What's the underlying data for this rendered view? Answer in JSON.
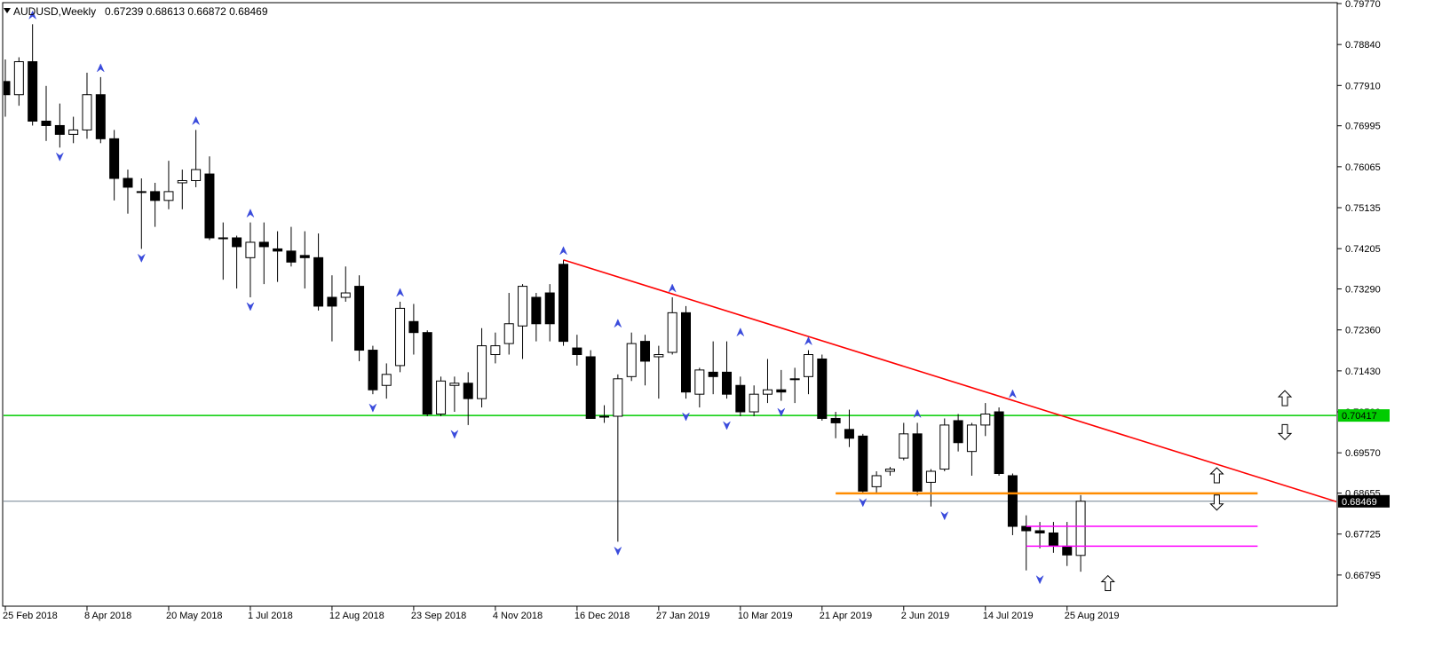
{
  "header": {
    "symbol_timeframe": "AUDUSD,Weekly",
    "ohlc": "0.67239 0.68613 0.66872 0.68469"
  },
  "colors": {
    "background": "#ffffff",
    "candle": "#000000",
    "trendline": "#ff0000",
    "resistance": "#00cc00",
    "support_orange": "#ff8c00",
    "support_magenta": "#ff00ff",
    "current_price_line": "#708090",
    "fractal": "#3a4bdc"
  },
  "chart_data": {
    "type": "candlestick",
    "title": "AUDUSD,Weekly",
    "ylim": [
      0.6645,
      0.7977
    ],
    "y_ticks": [
      "0.79770",
      "0.78840",
      "0.77910",
      "0.76995",
      "0.76065",
      "0.75135",
      "0.74205",
      "0.73290",
      "0.72360",
      "0.71430",
      "0.70500",
      "0.69570",
      "0.68655",
      "0.67725",
      "0.66795"
    ],
    "x_ticks": [
      {
        "label": "25 Feb 2018",
        "index": 0
      },
      {
        "label": "8 Apr 2018",
        "index": 6
      },
      {
        "label": "20 May 2018",
        "index": 12
      },
      {
        "label": "1 Jul 2018",
        "index": 18
      },
      {
        "label": "12 Aug 2018",
        "index": 24
      },
      {
        "label": "23 Sep 2018",
        "index": 30
      },
      {
        "label": "4 Nov 2018",
        "index": 36
      },
      {
        "label": "16 Dec 2018",
        "index": 42
      },
      {
        "label": "27 Jan 2019",
        "index": 48
      },
      {
        "label": "10 Mar 2019",
        "index": 54
      },
      {
        "label": "21 Apr 2019",
        "index": 60
      },
      {
        "label": "2 Jun 2019",
        "index": 66
      },
      {
        "label": "14 Jul 2019",
        "index": 72
      },
      {
        "label": "25 Aug 2019",
        "index": 78
      }
    ],
    "candles": [
      [
        0.78,
        0.785,
        0.772,
        0.777
      ],
      [
        0.777,
        0.7855,
        0.7745,
        0.7845
      ],
      [
        0.7845,
        0.793,
        0.77,
        0.771
      ],
      [
        0.771,
        0.779,
        0.7665,
        0.77
      ],
      [
        0.77,
        0.775,
        0.765,
        0.768
      ],
      [
        0.768,
        0.772,
        0.766,
        0.769
      ],
      [
        0.769,
        0.782,
        0.767,
        0.777
      ],
      [
        0.777,
        0.781,
        0.766,
        0.767
      ],
      [
        0.767,
        0.769,
        0.753,
        0.758
      ],
      [
        0.758,
        0.76,
        0.75,
        0.756
      ],
      [
        0.755,
        0.758,
        0.742,
        0.755
      ],
      [
        0.755,
        0.757,
        0.747,
        0.753
      ],
      [
        0.753,
        0.762,
        0.751,
        0.755
      ],
      [
        0.757,
        0.76,
        0.751,
        0.7575
      ],
      [
        0.7575,
        0.769,
        0.756,
        0.76
      ],
      [
        0.759,
        0.763,
        0.744,
        0.7445
      ],
      [
        0.7445,
        0.748,
        0.735,
        0.7445
      ],
      [
        0.7445,
        0.745,
        0.733,
        0.7425
      ],
      [
        0.74,
        0.748,
        0.731,
        0.7435
      ],
      [
        0.7435,
        0.748,
        0.734,
        0.7425
      ],
      [
        0.742,
        0.746,
        0.7345,
        0.7415
      ],
      [
        0.7415,
        0.747,
        0.738,
        0.739
      ],
      [
        0.7405,
        0.746,
        0.733,
        0.74
      ],
      [
        0.74,
        0.7455,
        0.728,
        0.729
      ],
      [
        0.731,
        0.736,
        0.721,
        0.729
      ],
      [
        0.731,
        0.738,
        0.73,
        0.732
      ],
      [
        0.7335,
        0.736,
        0.7165,
        0.719
      ],
      [
        0.719,
        0.72,
        0.709,
        0.71
      ],
      [
        0.711,
        0.716,
        0.708,
        0.7135
      ],
      [
        0.7155,
        0.73,
        0.714,
        0.7285
      ],
      [
        0.7255,
        0.7295,
        0.718,
        0.723
      ],
      [
        0.723,
        0.7235,
        0.704,
        0.7045
      ],
      [
        0.7045,
        0.713,
        0.704,
        0.712
      ],
      [
        0.711,
        0.713,
        0.705,
        0.7115
      ],
      [
        0.7115,
        0.714,
        0.702,
        0.708
      ],
      [
        0.708,
        0.724,
        0.706,
        0.72
      ],
      [
        0.718,
        0.723,
        0.716,
        0.72
      ],
      [
        0.7205,
        0.732,
        0.718,
        0.725
      ],
      [
        0.7245,
        0.734,
        0.717,
        0.7335
      ],
      [
        0.731,
        0.732,
        0.721,
        0.725
      ],
      [
        0.732,
        0.734,
        0.721,
        0.725
      ],
      [
        0.7385,
        0.7395,
        0.72,
        0.721
      ],
      [
        0.7195,
        0.7225,
        0.7155,
        0.718
      ],
      [
        0.7175,
        0.719,
        0.7035,
        0.7035
      ],
      [
        0.704,
        0.7065,
        0.7025,
        0.704
      ],
      [
        0.704,
        0.7135,
        0.6755,
        0.7125
      ],
      [
        0.713,
        0.723,
        0.712,
        0.7205
      ],
      [
        0.721,
        0.7225,
        0.711,
        0.7165
      ],
      [
        0.7175,
        0.72,
        0.708,
        0.718
      ],
      [
        0.7185,
        0.731,
        0.718,
        0.7275
      ],
      [
        0.7275,
        0.729,
        0.708,
        0.7095
      ],
      [
        0.709,
        0.715,
        0.706,
        0.7145
      ],
      [
        0.714,
        0.721,
        0.709,
        0.713
      ],
      [
        0.714,
        0.721,
        0.708,
        0.709
      ],
      [
        0.711,
        0.713,
        0.704,
        0.705
      ],
      [
        0.705,
        0.711,
        0.704,
        0.709
      ],
      [
        0.709,
        0.717,
        0.707,
        0.71
      ],
      [
        0.71,
        0.7145,
        0.7075,
        0.7095
      ],
      [
        0.7125,
        0.715,
        0.707,
        0.7125
      ],
      [
        0.713,
        0.719,
        0.709,
        0.718
      ],
      [
        0.717,
        0.718,
        0.703,
        0.7035
      ],
      [
        0.7035,
        0.705,
        0.699,
        0.7025
      ],
      [
        0.701,
        0.7055,
        0.697,
        0.699
      ],
      [
        0.6995,
        0.7,
        0.6865,
        0.687
      ],
      [
        0.688,
        0.6915,
        0.6865,
        0.6905
      ],
      [
        0.6915,
        0.6925,
        0.6905,
        0.692
      ],
      [
        0.6945,
        0.7025,
        0.694,
        0.7
      ],
      [
        0.7,
        0.7025,
        0.686,
        0.687
      ],
      [
        0.689,
        0.692,
        0.6835,
        0.6915
      ],
      [
        0.692,
        0.7035,
        0.6915,
        0.702
      ],
      [
        0.703,
        0.7045,
        0.696,
        0.698
      ],
      [
        0.696,
        0.7025,
        0.6905,
        0.702
      ],
      [
        0.702,
        0.707,
        0.6995,
        0.7045
      ],
      [
        0.705,
        0.706,
        0.6905,
        0.691
      ],
      [
        0.6905,
        0.691,
        0.677,
        0.679
      ],
      [
        0.679,
        0.6815,
        0.669,
        0.678
      ],
      [
        0.678,
        0.68,
        0.674,
        0.6775
      ],
      [
        0.6775,
        0.68,
        0.673,
        0.6745
      ],
      [
        0.6745,
        0.68,
        0.67,
        0.6725
      ],
      [
        0.6724,
        0.6861,
        0.6687,
        0.6847
      ]
    ],
    "fractals": [
      {
        "index": 2,
        "type": "up",
        "price": 0.793
      },
      {
        "index": 4,
        "type": "down",
        "price": 0.765
      },
      {
        "index": 7,
        "type": "up",
        "price": 0.781
      },
      {
        "index": 10,
        "type": "down",
        "price": 0.742
      },
      {
        "index": 14,
        "type": "up",
        "price": 0.769
      },
      {
        "index": 18,
        "type": "up",
        "price": 0.748
      },
      {
        "index": 18,
        "type": "down",
        "price": 0.731
      },
      {
        "index": 29,
        "type": "up",
        "price": 0.73
      },
      {
        "index": 27,
        "type": "down",
        "price": 0.708
      },
      {
        "index": 33,
        "type": "down",
        "price": 0.702
      },
      {
        "index": 41,
        "type": "up",
        "price": 0.7395
      },
      {
        "index": 45,
        "type": "up",
        "price": 0.723
      },
      {
        "index": 45,
        "type": "down",
        "price": 0.6755
      },
      {
        "index": 49,
        "type": "up",
        "price": 0.731
      },
      {
        "index": 50,
        "type": "down",
        "price": 0.706
      },
      {
        "index": 54,
        "type": "up",
        "price": 0.721
      },
      {
        "index": 53,
        "type": "down",
        "price": 0.704
      },
      {
        "index": 57,
        "type": "down",
        "price": 0.707
      },
      {
        "index": 59,
        "type": "up",
        "price": 0.719
      },
      {
        "index": 63,
        "type": "down",
        "price": 0.6865
      },
      {
        "index": 67,
        "type": "up",
        "price": 0.7025
      },
      {
        "index": 69,
        "type": "down",
        "price": 0.6835
      },
      {
        "index": 74,
        "type": "up",
        "price": 0.707
      },
      {
        "index": 76,
        "type": "down",
        "price": 0.669
      }
    ],
    "trendline": {
      "from": {
        "index": 41,
        "price": 0.7395
      },
      "to": {
        "index": 101,
        "price": 0.6815
      }
    },
    "resistance_line": {
      "price": 0.70417,
      "label": "0.70417"
    },
    "support_orange": {
      "from_index": 61,
      "to_index": 92,
      "price": 0.6865
    },
    "support_magenta": [
      {
        "from_index": 75,
        "to_index": 92,
        "price": 0.679
      },
      {
        "from_index": 75,
        "to_index": 92,
        "price": 0.6745
      }
    ],
    "current_price": {
      "price": 0.68469,
      "label": "0.68469"
    },
    "signal_arrows": [
      {
        "index": 94,
        "direction": "up",
        "price": 0.708
      },
      {
        "index": 94,
        "direction": "down",
        "price": 0.7005
      },
      {
        "index": 89,
        "direction": "up",
        "price": 0.6905
      },
      {
        "index": 89,
        "direction": "down",
        "price": 0.6845
      },
      {
        "index": 81,
        "direction": "up",
        "price": 0.666
      }
    ]
  }
}
